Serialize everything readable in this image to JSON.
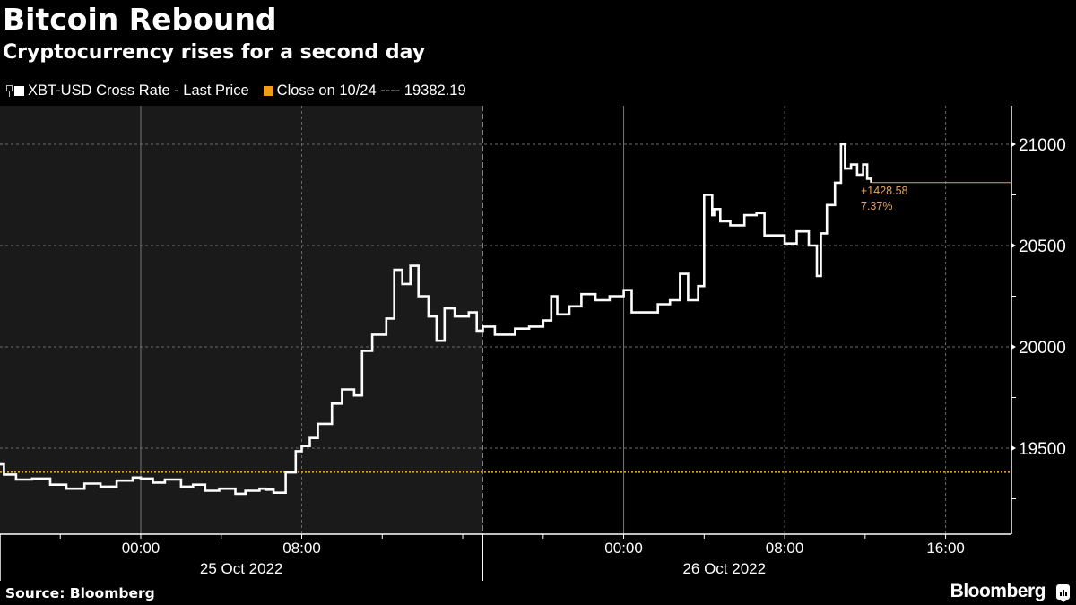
{
  "header": {
    "title": "Bitcoin Rebound",
    "subtitle": "Cryptocurrency rises for a second day"
  },
  "legend": [
    {
      "label": "XBT-USD Cross Rate - Last Price",
      "color": "#ffffff"
    },
    {
      "label": "Close on 10/24 ---- 19382.19",
      "color": "#f39c1c"
    }
  ],
  "annotation": {
    "change": "+1428.58",
    "percent": "7.37%"
  },
  "footer": {
    "source": "Source: Bloomberg",
    "brand": "Bloomberg"
  },
  "colors": {
    "background": "#000000",
    "shaded_region": "#1a1a1a",
    "line": "#ffffff",
    "close_line": "#f39c1c",
    "last_price_line": "#e6a25c",
    "grid": "#6b6b6b"
  },
  "chart_data": {
    "type": "line",
    "title": "Bitcoin Rebound",
    "subtitle": "Cryptocurrency rises for a second day",
    "xlabel": "",
    "ylabel": "",
    "ylim": [
      19250,
      21150
    ],
    "yticks": [
      19500,
      20000,
      20500,
      21000
    ],
    "xticks": [
      {
        "label": "00:00",
        "hour": 0
      },
      {
        "label": "08:00",
        "hour": 8
      },
      {
        "label": "00:00",
        "hour": 24
      },
      {
        "label": "08:00",
        "hour": 32
      },
      {
        "label": "16:00",
        "hour": 40
      }
    ],
    "date_labels": [
      {
        "label": "25 Oct 2022",
        "hour": 5
      },
      {
        "label": "26 Oct 2022",
        "hour": 29
      }
    ],
    "x_range_hours": [
      -7,
      43.25
    ],
    "shaded_until_hour": 17,
    "grid": true,
    "legend_position": "top-left",
    "reference_line": {
      "name": "Close on 10/24",
      "value": 19382.19,
      "style": "dotted"
    },
    "last_value": 20810.77,
    "series": [
      {
        "name": "XBT-USD Cross Rate - Last Price",
        "x_hours": [
          -7.0,
          -6.8,
          -6.2,
          -5.4,
          -4.5,
          -3.7,
          -2.8,
          -2.0,
          -1.2,
          -0.4,
          0.0,
          0.6,
          1.2,
          2.0,
          2.6,
          3.2,
          3.9,
          4.7,
          5.2,
          5.9,
          6.2,
          6.6,
          7.2,
          7.7,
          8.0,
          8.4,
          8.8,
          9.5,
          10.0,
          10.6,
          11.0,
          11.5,
          12.2,
          12.6,
          13.0,
          13.4,
          13.8,
          14.3,
          14.7,
          15.1,
          15.6,
          16.3,
          16.7,
          17.0,
          17.6,
          18.0,
          18.6,
          19.3,
          20.0,
          20.4,
          20.7,
          21.3,
          21.9,
          22.6,
          23.3,
          24.0,
          24.4,
          25.0,
          25.7,
          26.3,
          26.8,
          27.2,
          27.7,
          28.0,
          28.4,
          28.5,
          28.8,
          29.3,
          30.0,
          30.6,
          31.0,
          31.4,
          32.0,
          32.6,
          33.2,
          33.6,
          33.8,
          34.1,
          34.5,
          34.8,
          35.0,
          35.3,
          35.6,
          35.9,
          36.1,
          36.3
        ],
        "values": [
          19420,
          19370,
          19345,
          19350,
          19320,
          19300,
          19325,
          19310,
          19340,
          19355,
          19350,
          19330,
          19345,
          19310,
          19320,
          19290,
          19300,
          19275,
          19290,
          19300,
          19295,
          19280,
          19380,
          19485,
          19510,
          19550,
          19620,
          19720,
          19790,
          19760,
          19980,
          20060,
          20140,
          20380,
          20310,
          20400,
          20250,
          20150,
          20030,
          20190,
          20150,
          20170,
          20080,
          20100,
          20060,
          20060,
          20090,
          20100,
          20130,
          20250,
          20160,
          20200,
          20260,
          20230,
          20250,
          20280,
          20170,
          20170,
          20210,
          20230,
          20360,
          20230,
          20300,
          20750,
          20650,
          20680,
          20620,
          20600,
          20650,
          20660,
          20550,
          20550,
          20510,
          20570,
          20500,
          20350,
          20560,
          20700,
          20810,
          21000,
          20880,
          20900,
          20850,
          20900,
          20830,
          20810
        ]
      }
    ]
  }
}
